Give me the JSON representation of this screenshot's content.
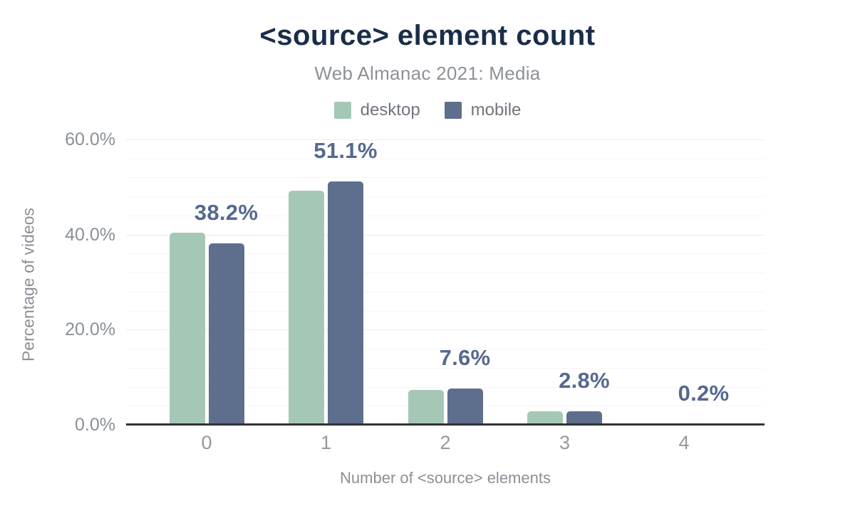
{
  "chart_data": {
    "type": "bar",
    "title": "<source> element count",
    "subtitle": "Web Almanac 2021: Media",
    "categories": [
      "0",
      "1",
      "2",
      "3",
      "4"
    ],
    "series": [
      {
        "name": "desktop",
        "color": "#a5c8b6",
        "values": [
          40.4,
          49.2,
          7.3,
          2.8,
          0.2
        ]
      },
      {
        "name": "mobile",
        "color": "#5e6f8d",
        "values": [
          38.2,
          51.1,
          7.6,
          2.8,
          0.2
        ]
      }
    ],
    "data_labels": {
      "labeled_series": "mobile",
      "values": [
        "38.2%",
        "51.1%",
        "7.6%",
        "2.8%",
        "0.2%"
      ],
      "color": "#55698f"
    },
    "xlabel": "Number of <source> elements",
    "ylabel": "Percentage of videos",
    "ylim": [
      0,
      60
    ],
    "yticks": [
      {
        "value": 0,
        "label": "0.0%"
      },
      {
        "value": 20,
        "label": "20.0%"
      },
      {
        "value": 40,
        "label": "40.0%"
      },
      {
        "value": 60,
        "label": "60.0%"
      }
    ],
    "grid": {
      "minor_step_pct": 4,
      "major_step_pct": 20,
      "orientation": "horizontal"
    },
    "legend_position": "top",
    "colors": {
      "title": "#1b2d49",
      "subtitle": "#8d9196",
      "axis_text": "#8a9097",
      "axis_line": "#323232"
    }
  }
}
